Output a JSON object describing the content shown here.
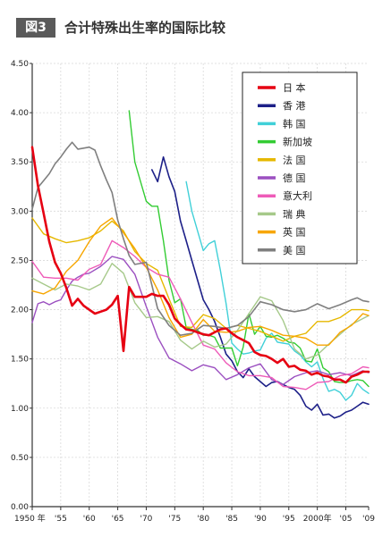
{
  "header": {
    "fig_label": "図3",
    "title": "合计特殊出生率的国际比较"
  },
  "chart_data": {
    "type": "line",
    "title": "合计特殊出生率的国际比较",
    "ylim": [
      0,
      4.5
    ],
    "xlim": [
      1950,
      2009
    ],
    "y_ticks": [
      0,
      0.5,
      1,
      1.5,
      2,
      2.5,
      3,
      3.5,
      4,
      4.5
    ],
    "y_tick_labels": [
      "0.00",
      "0.50",
      "1.00",
      "1.50",
      "2.00",
      "2.50",
      "3.00",
      "3.50",
      "4.00",
      "4.50"
    ],
    "x_ticks": [
      1950,
      1955,
      1960,
      1965,
      1970,
      1975,
      1980,
      1985,
      1990,
      1995,
      2000,
      2005,
      2009
    ],
    "x_tick_labels": [
      "1950 年",
      "'55",
      "'60",
      "'65",
      "'70",
      "'75",
      "'80",
      "'85",
      "'90",
      "'95",
      "2000年",
      "'05",
      "'09"
    ],
    "grid": true,
    "legend_position": "top-right",
    "series": [
      {
        "name": "日 本",
        "color": "#e60012",
        "width": 2.6,
        "x": [
          1950,
          1951,
          1952,
          1953,
          1954,
          1955,
          1956,
          1957,
          1958,
          1959,
          1960,
          1961,
          1962,
          1963,
          1964,
          1965,
          1966,
          1967,
          1968,
          1969,
          1970,
          1971,
          1972,
          1973,
          1974,
          1975,
          1976,
          1977,
          1978,
          1979,
          1980,
          1981,
          1982,
          1983,
          1984,
          1985,
          1986,
          1987,
          1988,
          1989,
          1990,
          1991,
          1992,
          1993,
          1994,
          1995,
          1996,
          1997,
          1998,
          1999,
          2000,
          2001,
          2002,
          2003,
          2004,
          2005,
          2006,
          2007,
          2008,
          2009
        ],
        "y": [
          3.65,
          3.26,
          2.98,
          2.69,
          2.48,
          2.37,
          2.22,
          2.04,
          2.11,
          2.04,
          2.0,
          1.96,
          1.98,
          2.0,
          2.05,
          2.14,
          1.58,
          2.23,
          2.13,
          2.13,
          2.13,
          2.16,
          2.14,
          2.14,
          2.05,
          1.91,
          1.85,
          1.8,
          1.79,
          1.77,
          1.75,
          1.74,
          1.77,
          1.8,
          1.81,
          1.76,
          1.72,
          1.69,
          1.66,
          1.57,
          1.54,
          1.53,
          1.5,
          1.46,
          1.5,
          1.42,
          1.43,
          1.39,
          1.38,
          1.34,
          1.36,
          1.33,
          1.32,
          1.29,
          1.29,
          1.26,
          1.32,
          1.34,
          1.37,
          1.37
        ]
      },
      {
        "name": "香 港",
        "color": "#1d2088",
        "width": 1.6,
        "x": [
          1971,
          1972,
          1973,
          1974,
          1975,
          1976,
          1977,
          1978,
          1979,
          1980,
          1981,
          1982,
          1983,
          1984,
          1985,
          1986,
          1987,
          1988,
          1989,
          1990,
          1991,
          1992,
          1993,
          1994,
          1995,
          1996,
          1997,
          1998,
          1999,
          2000,
          2001,
          2002,
          2003,
          2004,
          2005,
          2006,
          2007,
          2008,
          2009
        ],
        "y": [
          3.42,
          3.3,
          3.55,
          3.35,
          3.2,
          2.9,
          2.7,
          2.5,
          2.3,
          2.1,
          2.0,
          1.88,
          1.72,
          1.55,
          1.48,
          1.37,
          1.31,
          1.4,
          1.32,
          1.27,
          1.22,
          1.26,
          1.27,
          1.24,
          1.21,
          1.19,
          1.13,
          1.02,
          0.98,
          1.04,
          0.93,
          0.94,
          0.9,
          0.92,
          0.96,
          0.98,
          1.02,
          1.06,
          1.04
        ]
      },
      {
        "name": "韩 国",
        "color": "#40d0d8",
        "width": 1.4,
        "x": [
          1977,
          1978,
          1979,
          1980,
          1981,
          1982,
          1983,
          1984,
          1985,
          1986,
          1987,
          1988,
          1989,
          1990,
          1991,
          1992,
          1993,
          1994,
          1995,
          1996,
          1997,
          1998,
          1999,
          2000,
          2001,
          2002,
          2003,
          2004,
          2005,
          2006,
          2007,
          2008,
          2009
        ],
        "y": [
          3.3,
          3.0,
          2.8,
          2.6,
          2.67,
          2.7,
          2.4,
          2.06,
          1.66,
          1.6,
          1.55,
          1.56,
          1.58,
          1.59,
          1.71,
          1.76,
          1.67,
          1.66,
          1.65,
          1.58,
          1.54,
          1.47,
          1.42,
          1.47,
          1.3,
          1.17,
          1.19,
          1.16,
          1.08,
          1.13,
          1.25,
          1.19,
          1.15
        ]
      },
      {
        "name": "新加坡",
        "color": "#33cc33",
        "width": 1.4,
        "x": [
          1967,
          1968,
          1969,
          1970,
          1971,
          1972,
          1973,
          1974,
          1975,
          1976,
          1977,
          1978,
          1979,
          1980,
          1981,
          1982,
          1983,
          1984,
          1985,
          1986,
          1987,
          1988,
          1989,
          1990,
          1991,
          1992,
          1993,
          1994,
          1995,
          1996,
          1997,
          1998,
          1999,
          2000,
          2001,
          2002,
          2003,
          2004,
          2005,
          2006,
          2007,
          2008,
          2009
        ],
        "y": [
          4.02,
          3.5,
          3.3,
          3.1,
          3.05,
          3.05,
          2.7,
          2.3,
          2.07,
          2.11,
          1.82,
          1.8,
          1.79,
          1.74,
          1.74,
          1.72,
          1.61,
          1.61,
          1.61,
          1.43,
          1.62,
          1.96,
          1.75,
          1.83,
          1.73,
          1.72,
          1.74,
          1.71,
          1.67,
          1.66,
          1.61,
          1.48,
          1.47,
          1.6,
          1.41,
          1.37,
          1.27,
          1.26,
          1.26,
          1.28,
          1.29,
          1.28,
          1.22
        ]
      },
      {
        "name": "法 国",
        "color": "#e6b800",
        "width": 1.4,
        "x": [
          1950,
          1952,
          1954,
          1956,
          1958,
          1960,
          1962,
          1964,
          1966,
          1968,
          1970,
          1972,
          1974,
          1976,
          1978,
          1980,
          1982,
          1984,
          1986,
          1988,
          1990,
          1992,
          1994,
          1996,
          1998,
          2000,
          2002,
          2004,
          2006,
          2008,
          2009
        ],
        "y": [
          2.93,
          2.77,
          2.72,
          2.68,
          2.7,
          2.73,
          2.8,
          2.9,
          2.8,
          2.59,
          2.47,
          2.4,
          2.11,
          1.83,
          1.82,
          1.95,
          1.91,
          1.81,
          1.84,
          1.81,
          1.78,
          1.73,
          1.68,
          1.73,
          1.76,
          1.88,
          1.88,
          1.92,
          2.0,
          2.0,
          1.99
        ]
      },
      {
        "name": "德 国",
        "color": "#9b4fc0",
        "width": 1.4,
        "x": [
          1950,
          1951,
          1952,
          1953,
          1954,
          1955,
          1956,
          1957,
          1958,
          1959,
          1960,
          1962,
          1964,
          1966,
          1968,
          1970,
          1972,
          1974,
          1976,
          1978,
          1980,
          1982,
          1984,
          1986,
          1988,
          1990,
          1992,
          1994,
          1996,
          1998,
          2000,
          2002,
          2004,
          2006,
          2008,
          2009
        ],
        "y": [
          1.87,
          2.06,
          2.08,
          2.05,
          2.08,
          2.1,
          2.2,
          2.29,
          2.33,
          2.36,
          2.37,
          2.44,
          2.54,
          2.51,
          2.36,
          2.03,
          1.72,
          1.51,
          1.45,
          1.38,
          1.44,
          1.41,
          1.29,
          1.34,
          1.41,
          1.45,
          1.29,
          1.24,
          1.32,
          1.36,
          1.38,
          1.34,
          1.36,
          1.33,
          1.38,
          1.36
        ]
      },
      {
        "name": "意大利",
        "color": "#ee5bb8",
        "width": 1.4,
        "x": [
          1950,
          1952,
          1954,
          1956,
          1958,
          1960,
          1962,
          1964,
          1966,
          1968,
          1970,
          1972,
          1974,
          1976,
          1978,
          1980,
          1982,
          1984,
          1986,
          1988,
          1990,
          1992,
          1994,
          1996,
          1998,
          2000,
          2002,
          2004,
          2006,
          2008,
          2009
        ],
        "y": [
          2.49,
          2.33,
          2.32,
          2.32,
          2.3,
          2.41,
          2.46,
          2.7,
          2.63,
          2.54,
          2.43,
          2.36,
          2.33,
          2.11,
          1.87,
          1.64,
          1.6,
          1.46,
          1.37,
          1.33,
          1.33,
          1.31,
          1.22,
          1.21,
          1.19,
          1.26,
          1.27,
          1.33,
          1.35,
          1.42,
          1.41
        ]
      },
      {
        "name": "瑞 典",
        "color": "#a6c98a",
        "width": 1.4,
        "x": [
          1950,
          1952,
          1954,
          1956,
          1958,
          1960,
          1962,
          1964,
          1966,
          1968,
          1970,
          1972,
          1974,
          1976,
          1978,
          1980,
          1982,
          1984,
          1986,
          1988,
          1990,
          1992,
          1994,
          1996,
          1998,
          2000,
          2002,
          2004,
          2006,
          2008,
          2009
        ],
        "y": [
          2.32,
          2.26,
          2.2,
          2.26,
          2.24,
          2.2,
          2.26,
          2.47,
          2.37,
          2.07,
          1.92,
          1.93,
          1.88,
          1.69,
          1.6,
          1.68,
          1.62,
          1.65,
          1.79,
          1.96,
          2.13,
          2.09,
          1.89,
          1.6,
          1.5,
          1.54,
          1.65,
          1.75,
          1.85,
          1.91,
          1.94
        ]
      },
      {
        "name": "英 国",
        "color": "#f7a600",
        "width": 1.4,
        "x": [
          1950,
          1952,
          1954,
          1956,
          1958,
          1960,
          1962,
          1964,
          1966,
          1968,
          1970,
          1972,
          1974,
          1976,
          1978,
          1980,
          1982,
          1984,
          1986,
          1988,
          1990,
          1992,
          1994,
          1996,
          1998,
          2000,
          2002,
          2004,
          2006,
          2008,
          2009
        ],
        "y": [
          2.19,
          2.16,
          2.22,
          2.39,
          2.5,
          2.69,
          2.85,
          2.93,
          2.78,
          2.62,
          2.43,
          2.2,
          1.92,
          1.72,
          1.75,
          1.9,
          1.78,
          1.77,
          1.78,
          1.82,
          1.83,
          1.79,
          1.74,
          1.73,
          1.71,
          1.64,
          1.64,
          1.77,
          1.84,
          1.96,
          1.94
        ]
      },
      {
        "name": "美 国",
        "color": "#7f7f7f",
        "width": 1.6,
        "x": [
          1950,
          1951,
          1952,
          1953,
          1954,
          1955,
          1956,
          1957,
          1958,
          1959,
          1960,
          1961,
          1962,
          1963,
          1964,
          1965,
          1966,
          1967,
          1968,
          1970,
          1972,
          1974,
          1976,
          1978,
          1980,
          1982,
          1984,
          1986,
          1988,
          1990,
          1992,
          1994,
          1996,
          1998,
          2000,
          2002,
          2004,
          2006,
          2007,
          2008,
          2009
        ],
        "y": [
          3.02,
          3.24,
          3.31,
          3.38,
          3.48,
          3.55,
          3.63,
          3.7,
          3.63,
          3.64,
          3.65,
          3.62,
          3.46,
          3.32,
          3.19,
          2.91,
          2.72,
          2.55,
          2.46,
          2.48,
          2.01,
          1.84,
          1.74,
          1.76,
          1.84,
          1.83,
          1.81,
          1.84,
          1.93,
          2.08,
          2.05,
          2.0,
          1.98,
          2.0,
          2.06,
          2.01,
          2.05,
          2.1,
          2.12,
          2.09,
          2.08
        ]
      }
    ]
  }
}
